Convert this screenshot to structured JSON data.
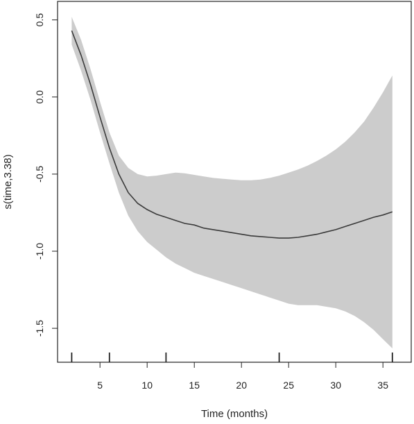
{
  "chart_data": {
    "type": "line",
    "title": "",
    "xlabel": "Time (months)",
    "ylabel": "s(time,3.38)",
    "xlim": [
      0.5,
      38.0
    ],
    "ylim": [
      -1.72,
      0.62
    ],
    "xticks": [
      5,
      10,
      15,
      20,
      25,
      30,
      35
    ],
    "yticks": [
      0.5,
      0.0,
      -0.5,
      -1.0,
      -1.5
    ],
    "ytick_labels": [
      "0.5",
      "0.0",
      "-0.5",
      "-1.0",
      "-1.5"
    ],
    "rug": [
      2,
      6,
      12,
      24,
      36
    ],
    "x": [
      2,
      3,
      4,
      5,
      6,
      7,
      8,
      9,
      10,
      11,
      12,
      13,
      14,
      15,
      16,
      17,
      18,
      19,
      20,
      21,
      22,
      23,
      24,
      25,
      26,
      27,
      28,
      29,
      30,
      31,
      32,
      33,
      34,
      35,
      36
    ],
    "fit": [
      0.43,
      0.27,
      0.08,
      -0.13,
      -0.33,
      -0.5,
      -0.62,
      -0.69,
      -0.73,
      -0.76,
      -0.78,
      -0.8,
      -0.82,
      -0.83,
      -0.85,
      -0.86,
      -0.87,
      -0.88,
      -0.89,
      -0.9,
      -0.905,
      -0.91,
      -0.915,
      -0.915,
      -0.91,
      -0.9,
      -0.89,
      -0.875,
      -0.86,
      -0.84,
      -0.82,
      -0.8,
      -0.78,
      -0.765,
      -0.745
    ],
    "upper": [
      0.52,
      0.37,
      0.18,
      -0.03,
      -0.23,
      -0.38,
      -0.46,
      -0.5,
      -0.515,
      -0.51,
      -0.5,
      -0.49,
      -0.495,
      -0.505,
      -0.515,
      -0.525,
      -0.53,
      -0.535,
      -0.54,
      -0.54,
      -0.535,
      -0.525,
      -0.51,
      -0.49,
      -0.47,
      -0.445,
      -0.415,
      -0.38,
      -0.34,
      -0.29,
      -0.23,
      -0.16,
      -0.07,
      0.03,
      0.14
    ],
    "lower": [
      0.34,
      0.17,
      -0.02,
      -0.23,
      -0.43,
      -0.62,
      -0.77,
      -0.87,
      -0.94,
      -0.99,
      -1.04,
      -1.08,
      -1.11,
      -1.14,
      -1.16,
      -1.18,
      -1.2,
      -1.22,
      -1.24,
      -1.26,
      -1.28,
      -1.3,
      -1.32,
      -1.34,
      -1.35,
      -1.35,
      -1.35,
      -1.36,
      -1.37,
      -1.39,
      -1.42,
      -1.46,
      -1.51,
      -1.57,
      -1.63
    ],
    "colors": {
      "line": "#3a3a3a",
      "band": "#cccccc",
      "axis": "#222222"
    },
    "grid": false,
    "legend": "none"
  }
}
